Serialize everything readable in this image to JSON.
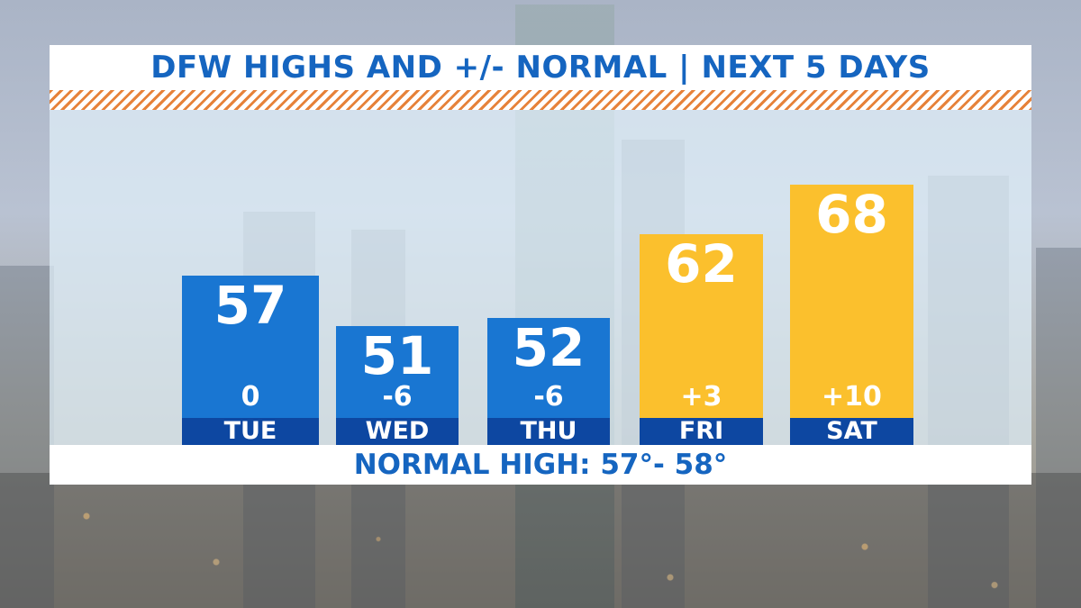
{
  "colors": {
    "title": "#1565c0",
    "below_normal_bar": "#1976d2",
    "above_normal_bar": "#fbc02d",
    "day_label_bg": "#0d47a1",
    "stripe": "#e6823a"
  },
  "chart_data": {
    "type": "bar",
    "title": "DFW HIGHS AND +/- NORMAL | NEXT 5 DAYS",
    "categories": [
      "TUE",
      "WED",
      "THU",
      "FRI",
      "SAT"
    ],
    "values": [
      57,
      51,
      52,
      62,
      68
    ],
    "anomalies": [
      "0",
      "-6",
      "-6",
      "+3",
      "+10"
    ],
    "bar_colors": [
      "#1976d2",
      "#1976d2",
      "#1976d2",
      "#fbc02d",
      "#fbc02d"
    ],
    "ylim": [
      40,
      70
    ],
    "grid": false,
    "legend": "none",
    "footer": "NORMAL HIGH: 57°- 58°"
  }
}
